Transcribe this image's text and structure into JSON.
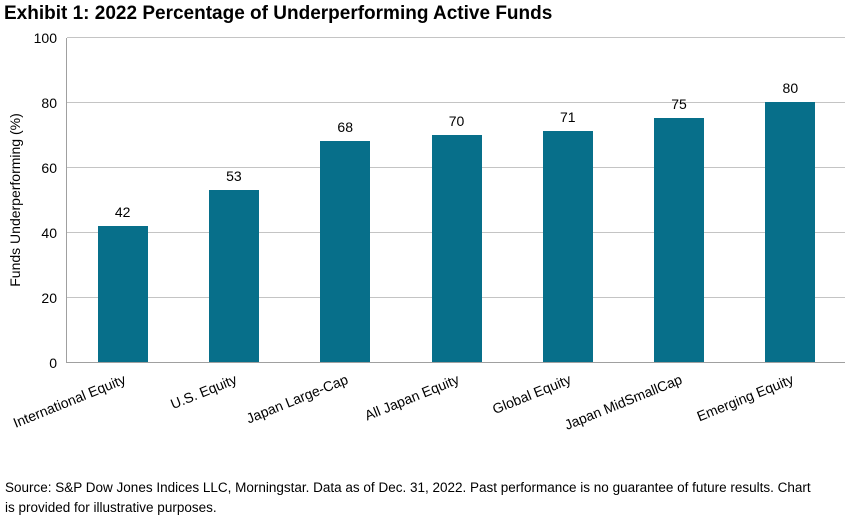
{
  "page": {
    "footer": "Source: S&P Dow Jones Indices LLC, Morningstar. Data as of Dec. 31, 2022. Past performance is no guarantee of future results. Chart is provided for illustrative purposes."
  },
  "chart_data": {
    "type": "bar",
    "title": "Exhibit 1: 2022 Percentage of Underperforming Active Funds",
    "categories": [
      "International Equity",
      "U.S. Equity",
      "Japan Large-Cap",
      "All Japan Equity",
      "Global Equity",
      "Japan MidSmallCap",
      "Emerging Equity"
    ],
    "values": [
      42,
      53,
      68,
      70,
      71,
      75,
      80
    ],
    "data_labels": [
      42,
      53,
      68,
      70,
      71,
      75,
      80
    ],
    "xlabel": "",
    "ylabel": "Funds Underperforming (%)",
    "ylim": [
      0,
      100
    ],
    "yticks": [
      0,
      20,
      40,
      60,
      80,
      100
    ],
    "grid": true,
    "legend": "none",
    "bar_color": "#076f8a",
    "gridline_color": "#c4c4c4",
    "axis_color": "#a0a0a0",
    "text_color": "#000000"
  }
}
